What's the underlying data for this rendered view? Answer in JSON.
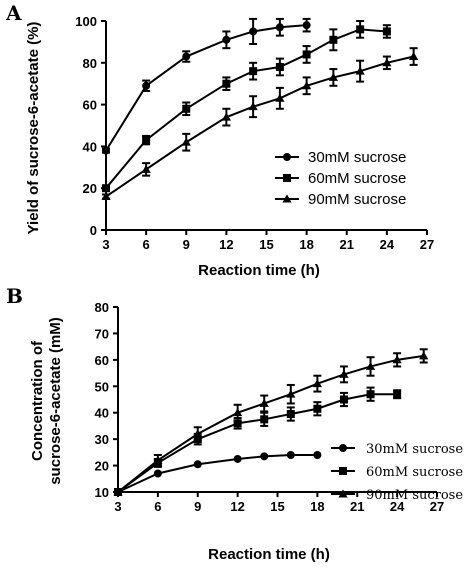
{
  "chart_data": [
    {
      "type": "line",
      "panel": "A",
      "xlabel": "Reaction time (h)",
      "ylabel": "Yield of sucrose-6-acetate (%)",
      "xlim": [
        3,
        27
      ],
      "ylim": [
        0,
        100
      ],
      "xticks": [
        3,
        6,
        9,
        12,
        15,
        18,
        21,
        24,
        27
      ],
      "yticks": [
        0,
        20,
        40,
        60,
        80,
        100
      ],
      "legend_position": "center-right",
      "series": [
        {
          "name": "30mM sucrose",
          "marker": "circle",
          "x": [
            3,
            6,
            9,
            12,
            14,
            16,
            18
          ],
          "y": [
            38,
            69,
            83,
            91,
            95,
            97,
            98
          ],
          "err": [
            1,
            2.5,
            2.5,
            4,
            6,
            4,
            3
          ]
        },
        {
          "name": "60mM sucrose",
          "marker": "square",
          "x": [
            3,
            6,
            9,
            12,
            14,
            16,
            18,
            20,
            22,
            24
          ],
          "y": [
            20,
            43,
            58,
            70,
            76,
            78,
            84,
            91,
            96,
            95
          ],
          "err": [
            1,
            2,
            3,
            3,
            4,
            4,
            4,
            5,
            4,
            3
          ]
        },
        {
          "name": "90mM sucrose",
          "marker": "triangle",
          "x": [
            3,
            6,
            9,
            12,
            14,
            16,
            18,
            20,
            22,
            24,
            26
          ],
          "y": [
            16,
            29,
            42,
            54,
            59,
            63,
            69,
            73,
            76,
            80,
            83
          ],
          "err": [
            1,
            3,
            4,
            4,
            5,
            5,
            4,
            4,
            5,
            3,
            4
          ]
        }
      ]
    },
    {
      "type": "line",
      "panel": "B",
      "xlabel": "Reaction time (h)",
      "ylabel_lines": [
        "Concentration of",
        "sucrose-6-acetate (mM)"
      ],
      "xlim": [
        3,
        27
      ],
      "ylim": [
        10,
        80
      ],
      "xticks": [
        3,
        6,
        9,
        12,
        15,
        18,
        21,
        24,
        27
      ],
      "yticks": [
        10,
        20,
        30,
        40,
        50,
        60,
        70,
        80
      ],
      "legend_position": "bottom-right",
      "series": [
        {
          "name": "30mM sucrose",
          "marker": "circle",
          "x": [
            3,
            6,
            9,
            12,
            14,
            16,
            18
          ],
          "y": [
            10,
            17,
            20.5,
            22.5,
            23.5,
            24,
            24
          ],
          "err": [
            0,
            0,
            0,
            0,
            0,
            0,
            0
          ]
        },
        {
          "name": "60mM sucrose",
          "marker": "square",
          "x": [
            3,
            6,
            9,
            12,
            14,
            16,
            18,
            20,
            22,
            24
          ],
          "y": [
            10,
            21,
            30,
            36,
            37.5,
            39.5,
            41.5,
            45,
            47,
            47
          ],
          "err": [
            0.5,
            1.5,
            2,
            2,
            2.5,
            2.5,
            2.5,
            2.5,
            2.5,
            1.5
          ]
        },
        {
          "name": "90mM sucrose",
          "marker": "triangle",
          "x": [
            3,
            6,
            9,
            12,
            14,
            16,
            18,
            20,
            22,
            24,
            26
          ],
          "y": [
            10,
            22,
            32,
            40,
            43.5,
            47,
            51,
            54.5,
            57.5,
            60,
            61.5
          ],
          "err": [
            1,
            2,
            2.5,
            3,
            3,
            3.5,
            3,
            3,
            3.5,
            2.5,
            2.5
          ]
        }
      ]
    }
  ]
}
